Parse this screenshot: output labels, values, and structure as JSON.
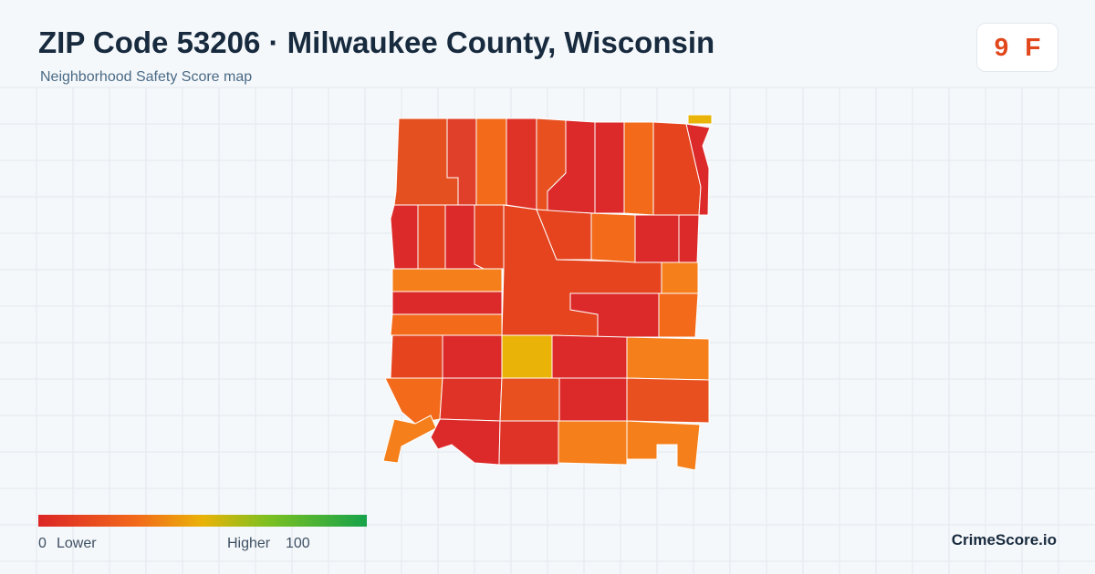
{
  "header": {
    "title": "ZIP Code 53206 · Milwaukee County, Wisconsin",
    "subtitle": "Neighborhood Safety Score map"
  },
  "score": {
    "value": 9,
    "grade": "F"
  },
  "legend": {
    "min": 0,
    "min_label": "Lower",
    "max_label": "Higher",
    "max": 100
  },
  "footer": {
    "brand": "CrimeScore.io"
  }
}
